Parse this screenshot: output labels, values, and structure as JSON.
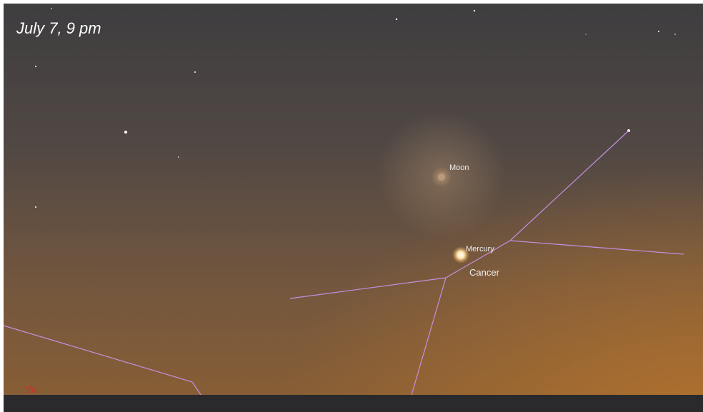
{
  "caption": "July 7, 9 pm",
  "labels": {
    "moon": "Moon",
    "mercury": "Mercury",
    "constellation": "Cancer",
    "direction": "W"
  }
}
